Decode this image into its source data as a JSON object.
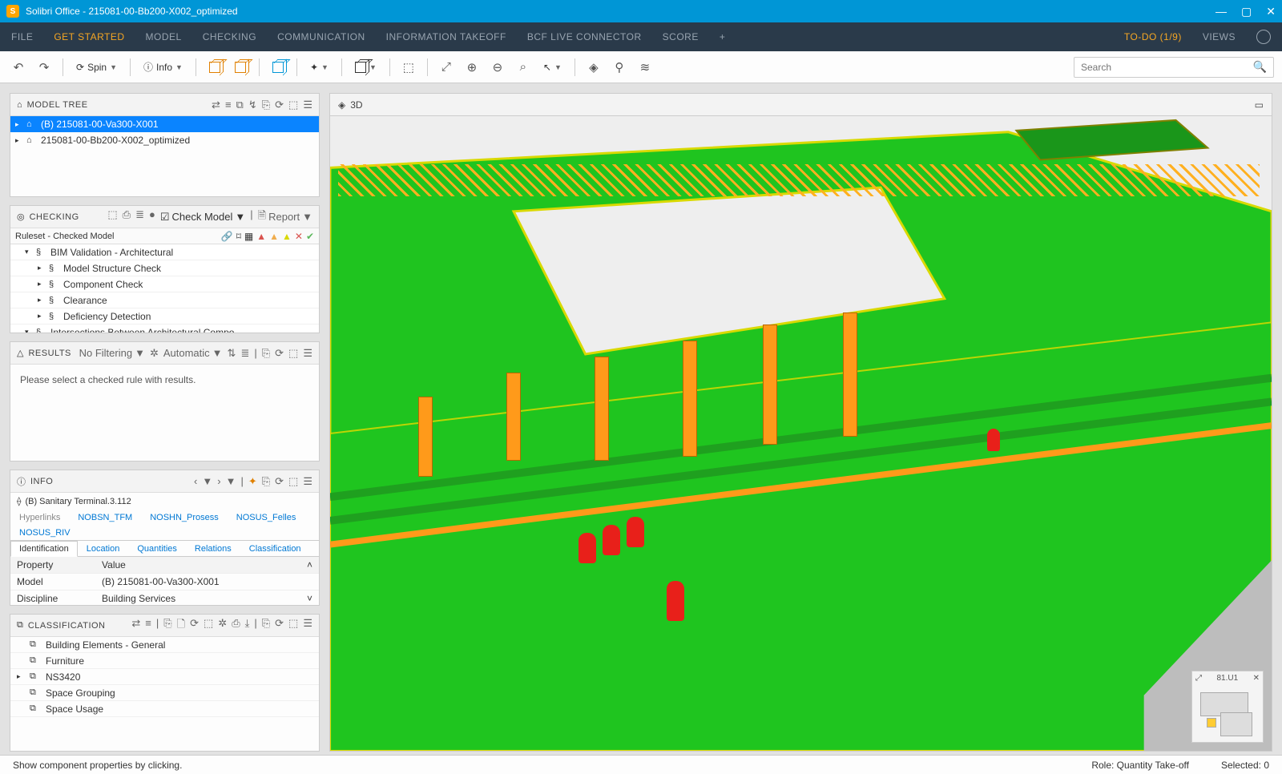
{
  "app": {
    "title": "Solibri Office - 215081-00-Bb200-X002_optimized",
    "logo_letter": "S"
  },
  "menubar": {
    "items": [
      "FILE",
      "GET STARTED",
      "MODEL",
      "CHECKING",
      "COMMUNICATION",
      "INFORMATION TAKEOFF",
      "BCF LIVE CONNECTOR",
      "SCORE"
    ],
    "active_index": 1,
    "todo": "TO-DO (1/9)",
    "views": "VIEWS"
  },
  "toolbar": {
    "spin_label": "Spin",
    "info_label": "Info",
    "search_placeholder": "Search"
  },
  "model_tree": {
    "title": "MODEL TREE",
    "items": [
      {
        "label": "(B) 215081-00-Va300-X001",
        "selected": true
      },
      {
        "label": "215081-00-Bb200-X002_optimized",
        "selected": false
      }
    ]
  },
  "checking": {
    "title": "CHECKING",
    "check_model_label": "Check Model",
    "report_label": "Report",
    "header_label": "Ruleset - Checked Model",
    "rows": [
      {
        "label": "BIM Validation - Architectural",
        "indent": 1,
        "expanded": true
      },
      {
        "label": "Model Structure Check",
        "indent": 2,
        "expanded": false
      },
      {
        "label": "Component Check",
        "indent": 2,
        "expanded": false
      },
      {
        "label": "Clearance",
        "indent": 2,
        "expanded": false
      },
      {
        "label": "Deficiency Detection",
        "indent": 2,
        "expanded": false
      },
      {
        "label": "Intersections Between Architectural Compo...",
        "indent": 1,
        "expanded": true
      }
    ]
  },
  "results": {
    "title": "RESULTS",
    "filter_label": "No Filtering",
    "auto_label": "Automatic",
    "empty_text": "Please select a checked rule with results."
  },
  "info": {
    "title": "INFO",
    "component": "(B) Sanitary Terminal.3.112",
    "tabs_top": [
      "Hyperlinks",
      "NOBSN_TFM",
      "NOSHN_Prosess",
      "NOSUS_Felles",
      "NOSUS_RIV"
    ],
    "tabs_bottom": [
      "Identification",
      "Location",
      "Quantities",
      "Relations",
      "Classification"
    ],
    "active_tab": "Identification",
    "table_headers": [
      "Property",
      "Value"
    ],
    "rows": [
      {
        "property": "Model",
        "value": "(B) 215081-00-Va300-X001"
      },
      {
        "property": "Discipline",
        "value": "Building Services"
      }
    ]
  },
  "classification": {
    "title": "CLASSIFICATION",
    "rows": [
      {
        "label": "Building Elements - General",
        "has_arrow": false
      },
      {
        "label": "Furniture",
        "has_arrow": false
      },
      {
        "label": "NS3420",
        "has_arrow": true
      },
      {
        "label": "Space Grouping",
        "has_arrow": false
      },
      {
        "label": "Space Usage",
        "has_arrow": false
      }
    ]
  },
  "viewport": {
    "title": "3D",
    "minimap_label": "81.U1",
    "scene_colors": {
      "ground": "#eeeeee",
      "structure": "#1fc41f",
      "highlight": "#d9d900",
      "column": "#ff9a1a",
      "tank": "#e8201a"
    }
  },
  "statusbar": {
    "hint": "Show component properties by clicking.",
    "role": "Role: Quantity Take-off",
    "selected": "Selected: 0"
  }
}
